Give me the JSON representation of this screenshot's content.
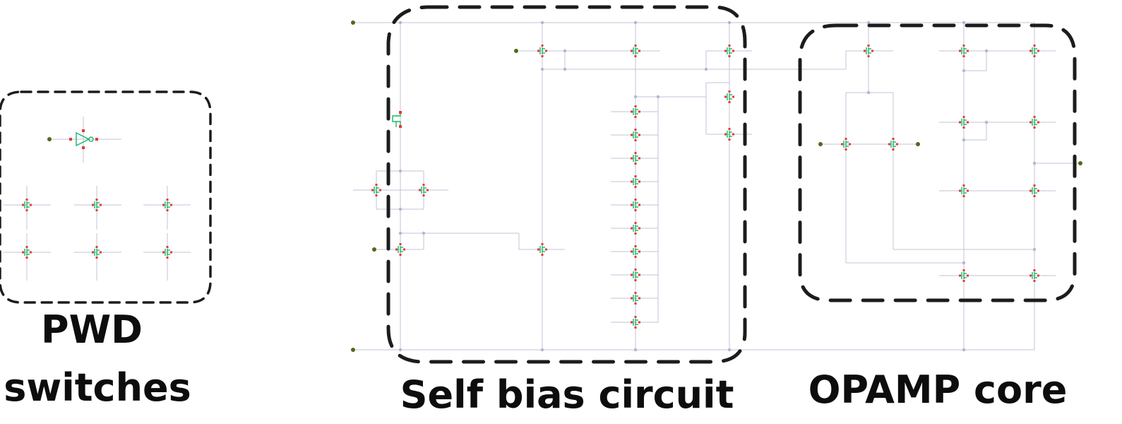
{
  "groups": {
    "pwd": {
      "line1": "PWD",
      "line2": "switches"
    },
    "bias": {
      "label": "Self bias circuit"
    },
    "opamp": {
      "label": "OPAMP core"
    }
  },
  "colors": {
    "wire": "#c3c3d8",
    "transistor": "#19b66a",
    "pin": "#e53935",
    "port": "#4d6b17",
    "outline": "#1c1c1c",
    "label": "#0d0d0d"
  }
}
